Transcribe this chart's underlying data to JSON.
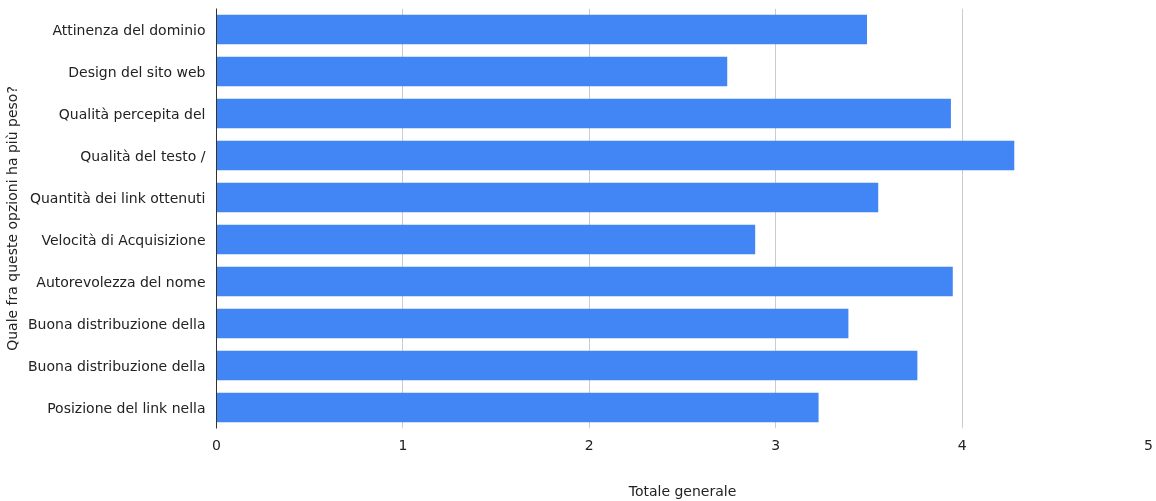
{
  "chart_data": {
    "type": "bar",
    "orientation": "horizontal",
    "xlabel": "Totale generale",
    "ylabel": "Quale fra queste opzioni ha più peso?",
    "categories": [
      "Attinenza del dominio",
      "Design del sito web",
      "Qualità percepita del",
      "Qualità del testo /",
      "Quantità dei link ottenuti",
      "Velocità di Acquisizione",
      "Autorevolezza del nome",
      "Buona distribuzione della",
      "Buona distribuzione della",
      "Posizione del link nella"
    ],
    "values": [
      3.49,
      2.74,
      3.94,
      4.28,
      3.55,
      2.89,
      3.95,
      3.39,
      3.76,
      3.23
    ],
    "color": "#4285f4",
    "xlim": [
      0,
      5
    ],
    "xticks": [
      0,
      1,
      2,
      3,
      4,
      5
    ],
    "grid": "x"
  }
}
